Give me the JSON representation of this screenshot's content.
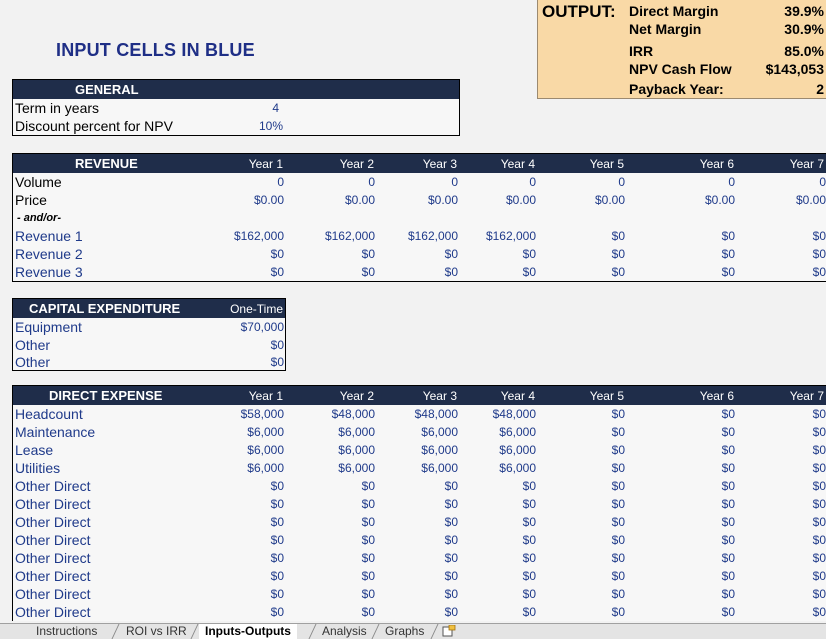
{
  "title": "INPUT CELLS IN BLUE",
  "output": {
    "label": "OUTPUT:",
    "rows": [
      {
        "k": "Direct Margin",
        "v": "39.9%"
      },
      {
        "k": "Net Margin",
        "v": "30.9%"
      },
      {
        "k": "IRR",
        "v": "85.0%"
      },
      {
        "k": "NPV Cash Flow",
        "v": "$143,053"
      },
      {
        "k": "Payback Year:",
        "v": "2"
      }
    ]
  },
  "general": {
    "header": "GENERAL",
    "rows": [
      {
        "label": "Term in years",
        "value": "4"
      },
      {
        "label": "Discount percent for NPV",
        "value": "10%"
      }
    ]
  },
  "years": [
    "Year 1",
    "Year 2",
    "Year 3",
    "Year 4",
    "Year 5",
    "Year 6",
    "Year 7"
  ],
  "revenue": {
    "header": "REVENUE",
    "volume": {
      "label": "Volume",
      "values": [
        "0",
        "0",
        "0",
        "0",
        "0",
        "0",
        "0"
      ]
    },
    "price": {
      "label": "Price",
      "values": [
        "$0.00",
        "$0.00",
        "$0.00",
        "$0.00",
        "$0.00",
        "$0.00",
        "$0.00"
      ]
    },
    "note": "- and/or-",
    "rev": [
      {
        "label": "Revenue 1",
        "values": [
          "$162,000",
          "$162,000",
          "$162,000",
          "$162,000",
          "$0",
          "$0",
          "$0"
        ]
      },
      {
        "label": "Revenue 2",
        "values": [
          "$0",
          "$0",
          "$0",
          "$0",
          "$0",
          "$0",
          "$0"
        ]
      },
      {
        "label": "Revenue 3",
        "values": [
          "$0",
          "$0",
          "$0",
          "$0",
          "$0",
          "$0",
          "$0"
        ]
      }
    ]
  },
  "capex": {
    "header": "CAPITAL EXPENDITURE",
    "col": "One-Time",
    "rows": [
      {
        "label": "Equipment",
        "value": "$70,000"
      },
      {
        "label": "Other",
        "value": "$0"
      },
      {
        "label": "Other",
        "value": "$0"
      }
    ]
  },
  "direct": {
    "header": "DIRECT EXPENSE",
    "rows": [
      {
        "label": "Headcount",
        "values": [
          "$58,000",
          "$48,000",
          "$48,000",
          "$48,000",
          "$0",
          "$0",
          "$0"
        ]
      },
      {
        "label": "Maintenance",
        "values": [
          "$6,000",
          "$6,000",
          "$6,000",
          "$6,000",
          "$0",
          "$0",
          "$0"
        ]
      },
      {
        "label": "Lease",
        "values": [
          "$6,000",
          "$6,000",
          "$6,000",
          "$6,000",
          "$0",
          "$0",
          "$0"
        ]
      },
      {
        "label": "Utilities",
        "values": [
          "$6,000",
          "$6,000",
          "$6,000",
          "$6,000",
          "$0",
          "$0",
          "$0"
        ]
      },
      {
        "label": "Other Direct",
        "values": [
          "$0",
          "$0",
          "$0",
          "$0",
          "$0",
          "$0",
          "$0"
        ]
      },
      {
        "label": "Other Direct",
        "values": [
          "$0",
          "$0",
          "$0",
          "$0",
          "$0",
          "$0",
          "$0"
        ]
      },
      {
        "label": "Other Direct",
        "values": [
          "$0",
          "$0",
          "$0",
          "$0",
          "$0",
          "$0",
          "$0"
        ]
      },
      {
        "label": "Other Direct",
        "values": [
          "$0",
          "$0",
          "$0",
          "$0",
          "$0",
          "$0",
          "$0"
        ]
      },
      {
        "label": "Other Direct",
        "values": [
          "$0",
          "$0",
          "$0",
          "$0",
          "$0",
          "$0",
          "$0"
        ]
      },
      {
        "label": "Other Direct",
        "values": [
          "$0",
          "$0",
          "$0",
          "$0",
          "$0",
          "$0",
          "$0"
        ]
      },
      {
        "label": "Other Direct",
        "values": [
          "$0",
          "$0",
          "$0",
          "$0",
          "$0",
          "$0",
          "$0"
        ]
      },
      {
        "label": "Other Direct",
        "values": [
          "$0",
          "$0",
          "$0",
          "$0",
          "$0",
          "$0",
          "$0"
        ]
      }
    ]
  },
  "tabs": [
    "Instructions",
    "ROI vs IRR",
    "Inputs-Outputs",
    "Analysis",
    "Graphs"
  ],
  "active_tab": "Inputs-Outputs"
}
